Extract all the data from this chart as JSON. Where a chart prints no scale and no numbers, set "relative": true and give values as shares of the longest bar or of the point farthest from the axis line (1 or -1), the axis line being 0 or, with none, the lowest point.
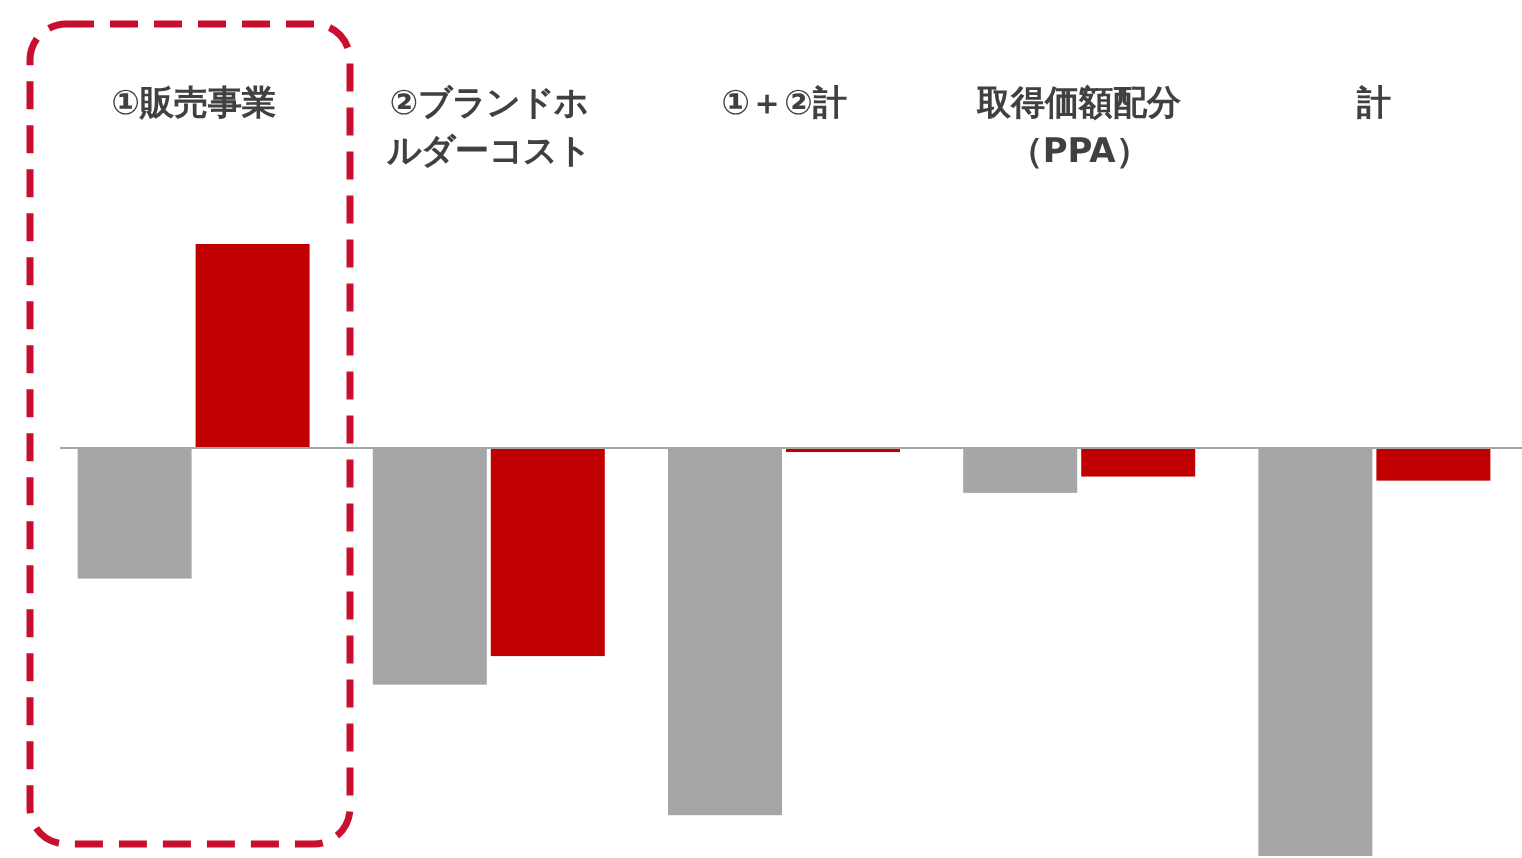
{
  "chart_data": {
    "type": "bar",
    "relative": true,
    "categories": [
      "①販売事業",
      "②ブランドホルダーコスト",
      "①＋②計",
      "取得価額配分（PPA）",
      "計"
    ],
    "series": [
      {
        "color": "#a6a6a6",
        "values": [
          -0.32,
          -0.58,
          -0.9,
          -0.11,
          -1
        ]
      },
      {
        "color": "#c00000",
        "values": [
          0.5,
          -0.51,
          -0.01,
          -0.07,
          -0.08
        ]
      }
    ]
  }
}
